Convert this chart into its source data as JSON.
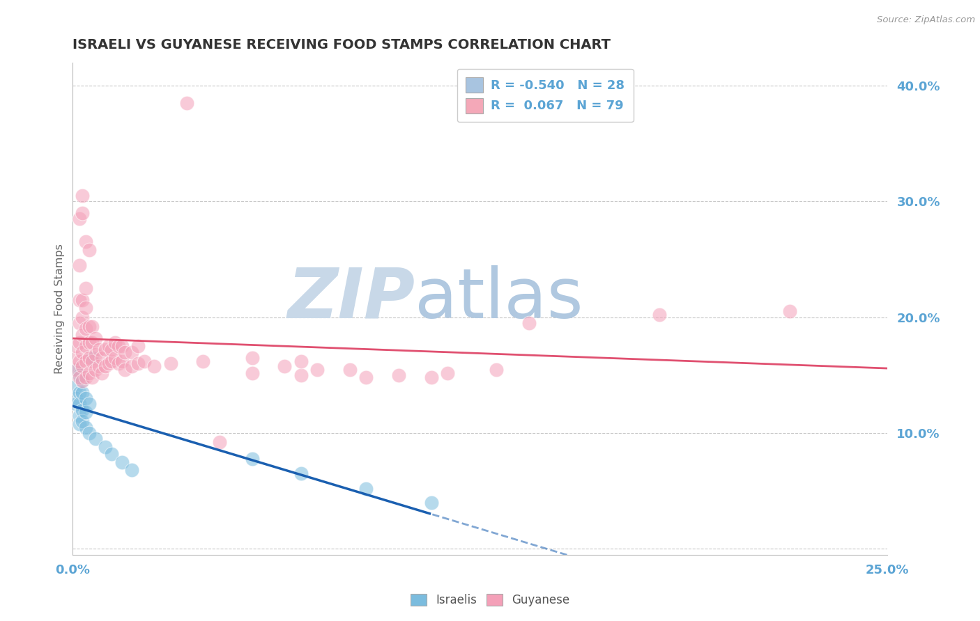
{
  "title": "ISRAELI VS GUYANESE RECEIVING FOOD STAMPS CORRELATION CHART",
  "source": "Source: ZipAtlas.com",
  "ylabel": "Receiving Food Stamps",
  "yticks": [
    0.0,
    0.1,
    0.2,
    0.3,
    0.4
  ],
  "ytick_labels": [
    "",
    "10.0%",
    "20.0%",
    "30.0%",
    "40.0%"
  ],
  "xlim": [
    0.0,
    0.25
  ],
  "ylim": [
    -0.005,
    0.42
  ],
  "legend_entries": [
    {
      "label": "R = -0.540   N = 28",
      "color": "#a8c4e0"
    },
    {
      "label": "R =  0.067   N = 79",
      "color": "#f4a8b8"
    }
  ],
  "legend_x1_label": "Israelis",
  "legend_x2_label": "Guyanese",
  "watermark_zip": "ZIP",
  "watermark_atlas": "atlas",
  "israeli_color": "#7bbcde",
  "guyanese_color": "#f4a0b8",
  "israeli_line_color": "#1a5fb0",
  "guyanese_line_color": "#e05070",
  "background_color": "#ffffff",
  "grid_color": "#c8c8c8",
  "title_color": "#333333",
  "axis_label_color": "#5ba4d4",
  "watermark_zip_color": "#c8d8e8",
  "watermark_atlas_color": "#b0c8e0",
  "israeli_scatter": [
    [
      0.001,
      0.155
    ],
    [
      0.001,
      0.14
    ],
    [
      0.001,
      0.13
    ],
    [
      0.001,
      0.125
    ],
    [
      0.002,
      0.15
    ],
    [
      0.002,
      0.135
    ],
    [
      0.002,
      0.125
    ],
    [
      0.002,
      0.115
    ],
    [
      0.002,
      0.108
    ],
    [
      0.003,
      0.145
    ],
    [
      0.003,
      0.135
    ],
    [
      0.003,
      0.12
    ],
    [
      0.003,
      0.11
    ],
    [
      0.004,
      0.13
    ],
    [
      0.004,
      0.118
    ],
    [
      0.004,
      0.105
    ],
    [
      0.005,
      0.125
    ],
    [
      0.005,
      0.1
    ],
    [
      0.006,
      0.165
    ],
    [
      0.007,
      0.095
    ],
    [
      0.01,
      0.088
    ],
    [
      0.012,
      0.082
    ],
    [
      0.015,
      0.075
    ],
    [
      0.018,
      0.068
    ],
    [
      0.055,
      0.078
    ],
    [
      0.07,
      0.065
    ],
    [
      0.09,
      0.052
    ],
    [
      0.11,
      0.04
    ]
  ],
  "guyanese_scatter": [
    [
      0.001,
      0.155
    ],
    [
      0.001,
      0.165
    ],
    [
      0.001,
      0.175
    ],
    [
      0.002,
      0.148
    ],
    [
      0.002,
      0.162
    ],
    [
      0.002,
      0.178
    ],
    [
      0.002,
      0.195
    ],
    [
      0.002,
      0.215
    ],
    [
      0.002,
      0.245
    ],
    [
      0.002,
      0.285
    ],
    [
      0.003,
      0.145
    ],
    [
      0.003,
      0.158
    ],
    [
      0.003,
      0.17
    ],
    [
      0.003,
      0.185
    ],
    [
      0.003,
      0.2
    ],
    [
      0.003,
      0.215
    ],
    [
      0.003,
      0.29
    ],
    [
      0.003,
      0.305
    ],
    [
      0.004,
      0.148
    ],
    [
      0.004,
      0.162
    ],
    [
      0.004,
      0.175
    ],
    [
      0.004,
      0.19
    ],
    [
      0.004,
      0.208
    ],
    [
      0.004,
      0.225
    ],
    [
      0.004,
      0.265
    ],
    [
      0.005,
      0.152
    ],
    [
      0.005,
      0.165
    ],
    [
      0.005,
      0.178
    ],
    [
      0.005,
      0.192
    ],
    [
      0.005,
      0.258
    ],
    [
      0.006,
      0.148
    ],
    [
      0.006,
      0.162
    ],
    [
      0.006,
      0.178
    ],
    [
      0.006,
      0.192
    ],
    [
      0.007,
      0.155
    ],
    [
      0.007,
      0.168
    ],
    [
      0.007,
      0.182
    ],
    [
      0.008,
      0.158
    ],
    [
      0.008,
      0.172
    ],
    [
      0.009,
      0.152
    ],
    [
      0.009,
      0.165
    ],
    [
      0.01,
      0.158
    ],
    [
      0.01,
      0.172
    ],
    [
      0.011,
      0.16
    ],
    [
      0.011,
      0.175
    ],
    [
      0.012,
      0.162
    ],
    [
      0.012,
      0.172
    ],
    [
      0.013,
      0.165
    ],
    [
      0.013,
      0.178
    ],
    [
      0.014,
      0.16
    ],
    [
      0.014,
      0.175
    ],
    [
      0.015,
      0.162
    ],
    [
      0.015,
      0.175
    ],
    [
      0.016,
      0.155
    ],
    [
      0.016,
      0.17
    ],
    [
      0.018,
      0.158
    ],
    [
      0.018,
      0.17
    ],
    [
      0.02,
      0.16
    ],
    [
      0.02,
      0.175
    ],
    [
      0.022,
      0.162
    ],
    [
      0.025,
      0.158
    ],
    [
      0.03,
      0.16
    ],
    [
      0.035,
      0.385
    ],
    [
      0.04,
      0.162
    ],
    [
      0.045,
      0.092
    ],
    [
      0.055,
      0.152
    ],
    [
      0.055,
      0.165
    ],
    [
      0.065,
      0.158
    ],
    [
      0.07,
      0.15
    ],
    [
      0.07,
      0.162
    ],
    [
      0.075,
      0.155
    ],
    [
      0.085,
      0.155
    ],
    [
      0.09,
      0.148
    ],
    [
      0.1,
      0.15
    ],
    [
      0.11,
      0.148
    ],
    [
      0.115,
      0.152
    ],
    [
      0.13,
      0.155
    ],
    [
      0.14,
      0.195
    ],
    [
      0.18,
      0.202
    ],
    [
      0.22,
      0.205
    ]
  ]
}
